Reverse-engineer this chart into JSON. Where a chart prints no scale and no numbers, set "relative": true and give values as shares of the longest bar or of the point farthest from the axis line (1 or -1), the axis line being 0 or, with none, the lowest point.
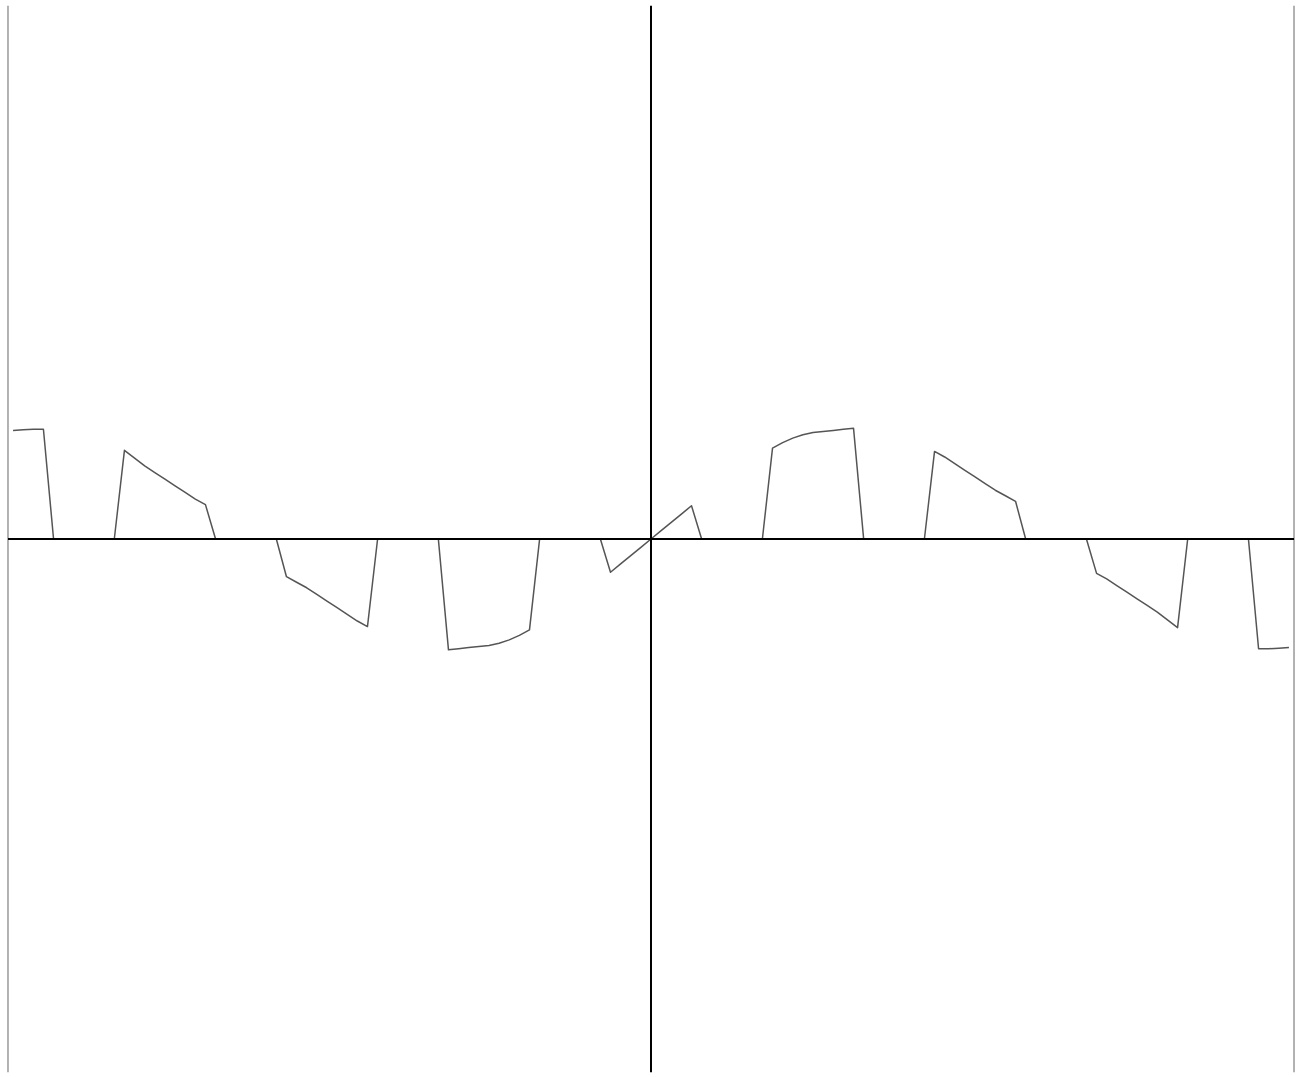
{
  "chart_data": {
    "type": "line",
    "relative": true,
    "tick_labels": false,
    "grid": false,
    "categories": [
      null,
      null,
      null,
      null,
      null,
      null,
      null,
      null,
      null,
      null,
      null,
      null,
      null,
      null,
      null,
      null,
      null,
      null,
      null,
      null,
      null,
      null,
      null,
      null,
      null,
      null,
      null,
      null,
      null,
      null,
      null,
      null,
      null,
      null,
      null,
      null,
      null,
      null,
      null,
      null,
      null,
      null,
      null,
      null,
      null,
      null,
      null,
      null,
      null,
      null,
      null,
      null,
      null,
      null,
      null,
      null,
      null,
      null,
      null,
      null,
      null,
      null,
      null,
      null,
      null,
      null,
      null,
      null,
      null,
      null,
      null,
      null,
      null,
      null,
      null,
      null,
      null,
      null,
      null,
      null,
      null,
      null,
      null,
      null,
      null,
      null,
      null,
      null,
      null,
      null,
      null,
      null,
      null,
      null,
      null,
      null,
      null,
      null,
      null,
      null,
      null,
      null,
      null,
      null,
      null,
      null,
      null,
      null,
      null,
      null,
      null,
      null,
      null,
      null,
      null,
      null,
      null,
      null,
      null,
      null,
      null,
      null,
      null,
      null,
      null,
      null,
      null
    ],
    "series": [
      {
        "color": "#555555",
        "values": [
          0.98,
          0.985,
          0.99,
          0.99,
          0,
          0,
          0,
          0,
          0,
          0,
          0,
          0.8,
          0.73,
          0.66,
          0.6,
          0.54,
          0.48,
          0.42,
          0.36,
          0.31,
          0,
          0,
          0,
          0,
          0,
          0,
          0,
          -0.34,
          -0.39,
          -0.44,
          -0.5,
          -0.56,
          -0.62,
          -0.68,
          -0.74,
          -0.79,
          0,
          0,
          0,
          0,
          0,
          0,
          0,
          -1.0,
          -0.99,
          -0.98,
          -0.97,
          -0.96,
          -0.94,
          -0.91,
          -0.87,
          -0.82,
          0,
          0,
          0,
          0,
          0,
          0,
          0,
          -0.3,
          -0.225,
          -0.15,
          -0.075,
          0,
          0.075,
          0.15,
          0.225,
          0.3,
          0,
          0,
          0,
          0,
          0,
          0,
          0,
          0.82,
          0.87,
          0.91,
          0.94,
          0.96,
          0.97,
          0.98,
          0.99,
          1.0,
          0,
          0,
          0,
          0,
          0,
          0,
          0,
          0.79,
          0.74,
          0.68,
          0.62,
          0.56,
          0.5,
          0.44,
          0.39,
          0.34,
          0,
          0,
          0,
          0,
          0,
          0,
          0,
          -0.31,
          -0.36,
          -0.42,
          -0.48,
          -0.54,
          -0.6,
          -0.66,
          -0.73,
          -0.8,
          0,
          0,
          0,
          0,
          0,
          0,
          0,
          -0.99,
          -0.99,
          -0.985,
          -0.98
        ]
      }
    ]
  }
}
